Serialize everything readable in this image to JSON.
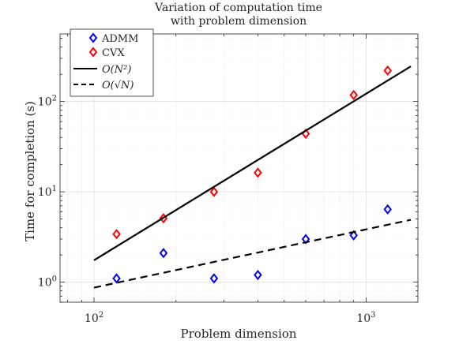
{
  "chart_data": {
    "type": "scatter",
    "title": [
      "Variation of computation time",
      "with problem dimension"
    ],
    "xlabel": "Problem dimension",
    "ylabel": "Time for completion (s)",
    "xscale": "log",
    "yscale": "log",
    "xlim": [
      75,
      1550
    ],
    "ylim": [
      0.6,
      560
    ],
    "x_ticks": [
      {
        "value": 100,
        "base": "10",
        "exp": "2"
      },
      {
        "value": 1000,
        "base": "10",
        "exp": "3"
      }
    ],
    "y_ticks": [
      {
        "value": 1,
        "base": "10",
        "exp": "0"
      },
      {
        "value": 10,
        "base": "10",
        "exp": "1"
      },
      {
        "value": 100,
        "base": "10",
        "exp": "2"
      }
    ],
    "grid": true,
    "legend_position": "top-left",
    "series": [
      {
        "name": "ADMM",
        "kind": "marker",
        "color": "#0000ff",
        "x": [
          121,
          180,
          276,
          400,
          600,
          900,
          1200
        ],
        "y": [
          1.1,
          2.1,
          1.1,
          1.2,
          3.0,
          3.3,
          6.4
        ]
      },
      {
        "name": "CVX",
        "kind": "marker",
        "color": "#ff0000",
        "x": [
          121,
          180,
          276,
          400,
          600,
          900,
          1200
        ],
        "y": [
          3.4,
          5.1,
          10.0,
          16.3,
          44,
          118,
          220
        ]
      },
      {
        "name": "O(N²)",
        "kind": "line",
        "dash": "solid",
        "color": "#000000",
        "x": [
          100,
          1460
        ],
        "y": [
          1.75,
          245
        ]
      },
      {
        "name": "O(√N)",
        "kind": "line",
        "dash": "dashed",
        "color": "#000000",
        "x": [
          100,
          1460
        ],
        "y": [
          0.87,
          4.9
        ]
      }
    ]
  }
}
